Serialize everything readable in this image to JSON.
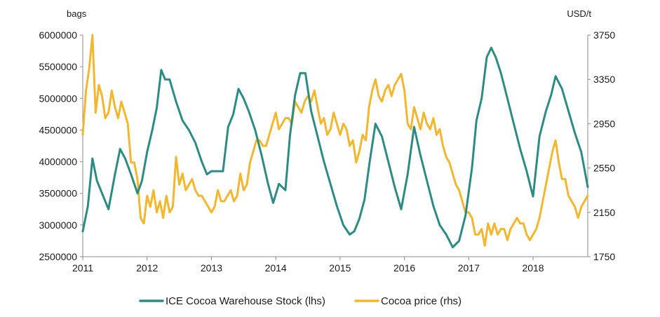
{
  "chart_data": {
    "type": "line",
    "title": "",
    "xlabel": "",
    "ylabel_left": "bags",
    "ylabel_right": "USD/t",
    "x_ticks": [
      "2011",
      "2012",
      "2013",
      "2014",
      "2015",
      "2016",
      "2017",
      "2018"
    ],
    "y_left_ticks": [
      "6000000",
      "5500000",
      "5000000",
      "4500000",
      "4000000",
      "3500000",
      "3000000",
      "2500000"
    ],
    "y_right_ticks": [
      "3750",
      "3350",
      "2950",
      "2550",
      "2150",
      "1750"
    ],
    "ylim_left": [
      2500000,
      6000000
    ],
    "ylim_right": [
      1750,
      3750
    ],
    "xlim": [
      2011.0,
      2018.85
    ],
    "grid": false,
    "legend_position": "bottom",
    "series": [
      {
        "name": "ICE Cocoa Warehouse Stock (lhs)",
        "axis": "left",
        "color": "#2e8b84",
        "x": [
          2011.0,
          2011.08,
          2011.15,
          2011.22,
          2011.3,
          2011.4,
          2011.5,
          2011.58,
          2011.66,
          2011.75,
          2011.85,
          2011.92,
          2012.0,
          2012.08,
          2012.15,
          2012.22,
          2012.28,
          2012.35,
          2012.45,
          2012.55,
          2012.65,
          2012.75,
          2012.85,
          2012.93,
          2013.0,
          2013.1,
          2013.18,
          2013.26,
          2013.34,
          2013.42,
          2013.5,
          2013.58,
          2013.68,
          2013.78,
          2013.88,
          2013.96,
          2014.05,
          2014.15,
          2014.22,
          2014.3,
          2014.38,
          2014.46,
          2014.55,
          2014.65,
          2014.75,
          2014.85,
          2014.95,
          2015.05,
          2015.15,
          2015.22,
          2015.3,
          2015.38,
          2015.46,
          2015.55,
          2015.65,
          2015.75,
          2015.85,
          2015.95,
          2016.05,
          2016.15,
          2016.25,
          2016.35,
          2016.45,
          2016.55,
          2016.65,
          2016.75,
          2016.85,
          2016.95,
          2017.05,
          2017.12,
          2017.2,
          2017.28,
          2017.35,
          2017.42,
          2017.5,
          2017.6,
          2017.7,
          2017.8,
          2017.9,
          2018.0,
          2018.1,
          2018.2,
          2018.28,
          2018.35,
          2018.45,
          2018.55,
          2018.65,
          2018.75,
          2018.85
        ],
        "values": [
          2900000,
          3300000,
          4050000,
          3700000,
          3500000,
          3250000,
          3800000,
          4200000,
          4050000,
          3800000,
          3500000,
          3700000,
          4150000,
          4500000,
          4850000,
          5450000,
          5300000,
          5300000,
          4950000,
          4650000,
          4500000,
          4300000,
          4000000,
          3800000,
          3850000,
          3850000,
          3850000,
          4550000,
          4750000,
          5150000,
          5000000,
          4800000,
          4500000,
          4100000,
          3650000,
          3350000,
          3650000,
          3550000,
          4400000,
          5050000,
          5400000,
          5400000,
          4800000,
          4400000,
          4000000,
          3650000,
          3300000,
          3000000,
          2850000,
          2900000,
          3100000,
          3400000,
          4000000,
          4600000,
          4400000,
          4000000,
          3600000,
          3250000,
          3800000,
          4550000,
          4100000,
          3700000,
          3300000,
          3000000,
          2850000,
          2650000,
          2750000,
          3150000,
          3900000,
          4650000,
          5000000,
          5650000,
          5800000,
          5650000,
          5400000,
          5000000,
          4600000,
          4200000,
          3850000,
          3450000,
          4400000,
          4800000,
          5050000,
          5350000,
          5150000,
          4800000,
          4450000,
          4150000,
          3600000
        ]
      },
      {
        "name": "Cocoa price (rhs)",
        "axis": "right",
        "color": "#f2b730",
        "x": [
          2011.0,
          2011.05,
          2011.1,
          2011.15,
          2011.2,
          2011.25,
          2011.3,
          2011.35,
          2011.4,
          2011.45,
          2011.5,
          2011.55,
          2011.6,
          2011.65,
          2011.7,
          2011.75,
          2011.8,
          2011.85,
          2011.9,
          2011.95,
          2012.0,
          2012.05,
          2012.1,
          2012.15,
          2012.2,
          2012.25,
          2012.3,
          2012.35,
          2012.4,
          2012.45,
          2012.5,
          2012.55,
          2012.6,
          2012.65,
          2012.7,
          2012.75,
          2012.8,
          2012.85,
          2012.9,
          2012.95,
          2013.0,
          2013.05,
          2013.1,
          2013.15,
          2013.2,
          2013.25,
          2013.3,
          2013.35,
          2013.4,
          2013.45,
          2013.5,
          2013.55,
          2013.6,
          2013.65,
          2013.7,
          2013.75,
          2013.8,
          2013.85,
          2013.9,
          2013.95,
          2014.0,
          2014.05,
          2014.1,
          2014.15,
          2014.2,
          2014.25,
          2014.3,
          2014.35,
          2014.4,
          2014.45,
          2014.5,
          2014.55,
          2014.6,
          2014.65,
          2014.7,
          2014.75,
          2014.8,
          2014.85,
          2014.9,
          2014.95,
          2015.0,
          2015.05,
          2015.1,
          2015.15,
          2015.2,
          2015.25,
          2015.3,
          2015.35,
          2015.4,
          2015.45,
          2015.5,
          2015.55,
          2015.6,
          2015.65,
          2015.7,
          2015.75,
          2015.8,
          2015.85,
          2015.9,
          2015.95,
          2016.0,
          2016.05,
          2016.1,
          2016.15,
          2016.2,
          2016.25,
          2016.3,
          2016.35,
          2016.4,
          2016.45,
          2016.5,
          2016.55,
          2016.6,
          2016.65,
          2016.7,
          2016.75,
          2016.8,
          2016.85,
          2016.9,
          2016.95,
          2017.0,
          2017.05,
          2017.1,
          2017.15,
          2017.2,
          2017.25,
          2017.3,
          2017.35,
          2017.4,
          2017.45,
          2017.5,
          2017.55,
          2017.6,
          2017.65,
          2017.7,
          2017.75,
          2017.8,
          2017.85,
          2017.9,
          2017.95,
          2018.0,
          2018.05,
          2018.1,
          2018.15,
          2018.2,
          2018.25,
          2018.3,
          2018.35,
          2018.4,
          2018.45,
          2018.5,
          2018.55,
          2018.6,
          2018.65,
          2018.7,
          2018.75,
          2018.8,
          2018.85
        ],
        "values": [
          2850,
          3250,
          3450,
          3750,
          3050,
          3300,
          3200,
          3000,
          3050,
          3250,
          3100,
          3000,
          3150,
          3050,
          2950,
          2600,
          2600,
          2450,
          2100,
          2050,
          2300,
          2200,
          2350,
          2150,
          2250,
          2100,
          2300,
          2150,
          2200,
          2650,
          2400,
          2500,
          2350,
          2400,
          2450,
          2350,
          2300,
          2300,
          2250,
          2200,
          2150,
          2200,
          2350,
          2250,
          2250,
          2300,
          2350,
          2250,
          2300,
          2500,
          2350,
          2400,
          2600,
          2700,
          2800,
          2800,
          2750,
          2750,
          2850,
          2950,
          3050,
          2900,
          2950,
          3000,
          3000,
          2950,
          3150,
          3100,
          3050,
          3150,
          3200,
          3150,
          3250,
          3100,
          2950,
          3000,
          2850,
          2900,
          3050,
          2950,
          2850,
          2950,
          2900,
          2750,
          2800,
          2600,
          2700,
          2850,
          2800,
          3100,
          3250,
          3350,
          3200,
          3150,
          3250,
          3300,
          3200,
          3300,
          3350,
          3400,
          3250,
          2950,
          2900,
          3100,
          3000,
          2900,
          3050,
          2950,
          2900,
          3000,
          2850,
          2900,
          2750,
          2650,
          2600,
          2500,
          2400,
          2350,
          2250,
          2150,
          2150,
          2100,
          1950,
          1950,
          2000,
          1850,
          2050,
          1950,
          2050,
          1950,
          2000,
          2000,
          1900,
          2000,
          2050,
          2100,
          2050,
          2050,
          1950,
          1900,
          1950,
          2000,
          2100,
          2250,
          2400,
          2550,
          2700,
          2800,
          2600,
          2450,
          2450,
          2300,
          2250,
          2200,
          2100,
          2200,
          2250,
          2300
        ]
      }
    ]
  }
}
